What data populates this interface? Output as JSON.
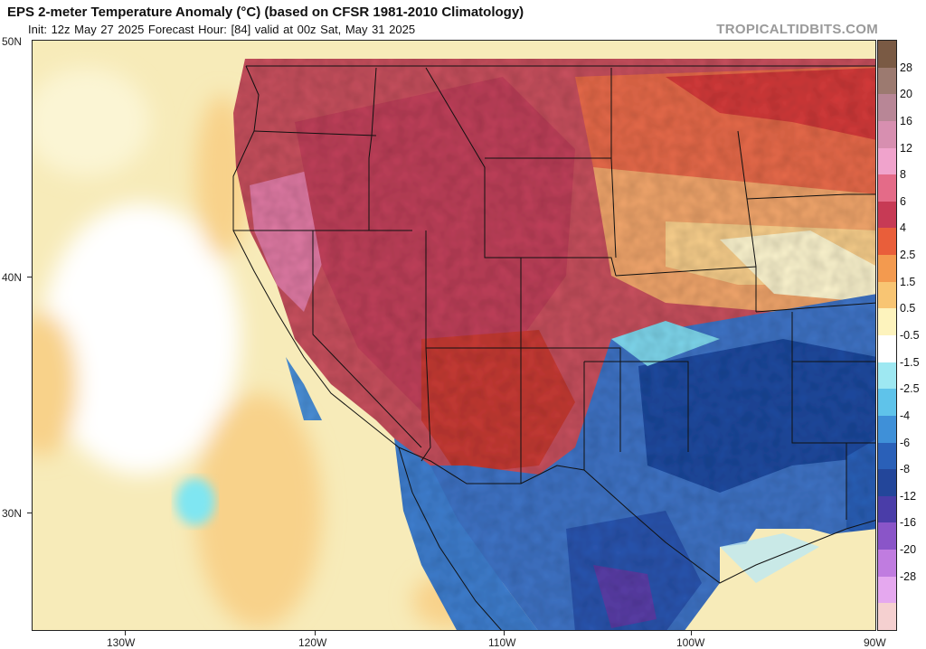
{
  "header": {
    "title": "EPS 2-meter Temperature Anomaly (°C) (based on CFSR 1981-2010 Climatology)",
    "subtitle": "Init: 12z May 27 2025   Forecast Hour: [84]   valid at 00z Sat, May 31 2025",
    "brand": "TROPICALTIDBITS.COM"
  },
  "map": {
    "lat_labels": [
      "50N",
      "40N",
      "30N"
    ],
    "lon_labels": [
      "130W",
      "120W",
      "110W",
      "100W",
      "90W"
    ],
    "colors": {
      "ocean_base": "#f7ebb9",
      "land_warm": "#c8505e",
      "land_hot": "#b92a44",
      "plains_warm": "#f2a66c",
      "cool_blue": "#3f74c7",
      "deep_blue": "#1d4aa0",
      "state_lines": "#111111"
    }
  },
  "colorbar": {
    "labels": [
      "28",
      "20",
      "16",
      "12",
      "8",
      "6",
      "4",
      "2.5",
      "1.5",
      "0.5",
      "-0.5",
      "-1.5",
      "-2.5",
      "-4",
      "-6",
      "-8",
      "-12",
      "-16",
      "-20",
      "-28"
    ],
    "colors": [
      "#7a5a44",
      "#9c7a70",
      "#b88696",
      "#d78fb0",
      "#f0a3cc",
      "#e46b88",
      "#c73a55",
      "#e95e3a",
      "#f39a4f",
      "#f8c573",
      "#fdf3bd",
      "#ffffff",
      "#9ee8f2",
      "#5fc3ea",
      "#3f90d8",
      "#2a60b8",
      "#23469a",
      "#4a3da8",
      "#8a55c8",
      "#c07ce0",
      "#e5a8ef",
      "#f5d0d0"
    ]
  }
}
